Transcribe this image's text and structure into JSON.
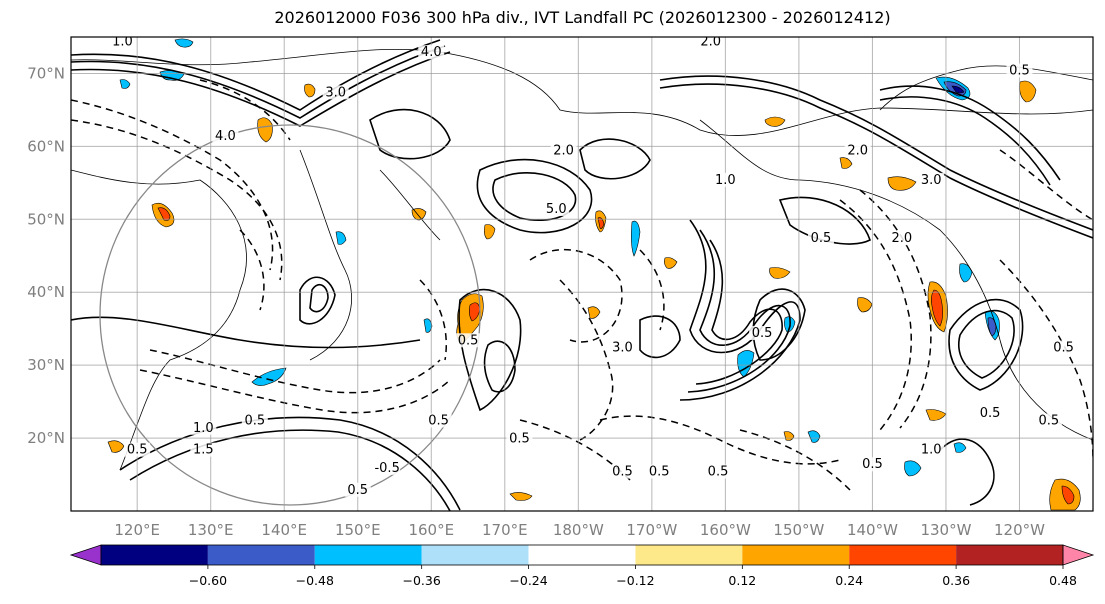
{
  "title": "2026012000 F036 300 hPa div., IVT Landfall PC (2026012300 - 2026012412)",
  "map": {
    "projection": "plate-carree",
    "lon_range": [
      111,
      250
    ],
    "lat_range": [
      10,
      75
    ],
    "lat_ticks": [
      {
        "value": 20,
        "label": "20°N"
      },
      {
        "value": 30,
        "label": "30°N"
      },
      {
        "value": 40,
        "label": "40°N"
      },
      {
        "value": 50,
        "label": "50°N"
      },
      {
        "value": 60,
        "label": "60°N"
      },
      {
        "value": 70,
        "label": "70°N"
      }
    ],
    "lon_ticks": [
      {
        "value": 120,
        "label": "120°E"
      },
      {
        "value": 130,
        "label": "130°E"
      },
      {
        "value": 140,
        "label": "140°E"
      },
      {
        "value": 150,
        "label": "150°E"
      },
      {
        "value": 160,
        "label": "160°E"
      },
      {
        "value": 170,
        "label": "170°E"
      },
      {
        "value": 180,
        "label": "180°W"
      },
      {
        "value": 190,
        "label": "170°W"
      },
      {
        "value": 200,
        "label": "160°W"
      },
      {
        "value": 210,
        "label": "150°W"
      },
      {
        "value": 220,
        "label": "140°W"
      },
      {
        "value": 230,
        "label": "130°W"
      },
      {
        "value": 240,
        "label": "120°W"
      }
    ],
    "grid": true,
    "contour_labels": [
      {
        "text": "1.0",
        "lon": 118,
        "lat": 74
      },
      {
        "text": "4.0",
        "lon": 160,
        "lat": 72.5
      },
      {
        "text": "2.0",
        "lon": 198,
        "lat": 74
      },
      {
        "text": "3.0",
        "lon": 147,
        "lat": 67
      },
      {
        "text": "4.0",
        "lon": 132,
        "lat": 61
      },
      {
        "text": "2.0",
        "lon": 178,
        "lat": 59
      },
      {
        "text": "5.0",
        "lon": 177,
        "lat": 51
      },
      {
        "text": "0.5",
        "lon": 165,
        "lat": 33
      },
      {
        "text": "0.5",
        "lon": 161,
        "lat": 22
      },
      {
        "text": "0.5",
        "lon": 136,
        "lat": 22
      },
      {
        "text": "1.0",
        "lon": 129,
        "lat": 21
      },
      {
        "text": "1.5",
        "lon": 129,
        "lat": 18
      },
      {
        "text": "0.5",
        "lon": 120,
        "lat": 18
      },
      {
        "text": "-0.5",
        "lon": 154,
        "lat": 15.5
      },
      {
        "text": "0.5",
        "lon": 150,
        "lat": 12.5
      },
      {
        "text": "0.5",
        "lon": 186,
        "lat": 15
      },
      {
        "text": "0.5",
        "lon": 191,
        "lat": 15
      },
      {
        "text": "0.5",
        "lon": 199,
        "lat": 15
      },
      {
        "text": "0.5",
        "lon": 172,
        "lat": 19.5
      },
      {
        "text": "0.5",
        "lon": 220,
        "lat": 16
      },
      {
        "text": "0.5",
        "lon": 236,
        "lat": 23
      },
      {
        "text": "0.5",
        "lon": 244,
        "lat": 22
      },
      {
        "text": "1.0",
        "lon": 228,
        "lat": 18
      },
      {
        "text": "0.5",
        "lon": 205,
        "lat": 34
      },
      {
        "text": "1.0",
        "lon": 200,
        "lat": 55
      },
      {
        "text": "2.0",
        "lon": 218,
        "lat": 59
      },
      {
        "text": "0.5",
        "lon": 240,
        "lat": 70
      },
      {
        "text": "3.0",
        "lon": 228,
        "lat": 55
      },
      {
        "text": "2.0",
        "lon": 224,
        "lat": 47
      },
      {
        "text": "0.5",
        "lon": 213,
        "lat": 47
      },
      {
        "text": "0.5",
        "lon": 246,
        "lat": 32
      },
      {
        "text": "3.0",
        "lon": 186,
        "lat": 32
      }
    ]
  },
  "colorbar": {
    "colors": [
      "#9932cc",
      "#000080",
      "#3a5bc8",
      "#00bfff",
      "#aee0fa",
      "#ffffff",
      "#fde98a",
      "#ffa500",
      "#ff4500",
      "#b22222",
      "#ff85a8"
    ],
    "bounds": [
      -0.6,
      -0.48,
      -0.36,
      -0.24,
      -0.12,
      0.12,
      0.24,
      0.36,
      0.48,
      0.6
    ],
    "tick_labels": [
      "−0.60",
      "−0.48",
      "−0.36",
      "−0.24",
      "−0.12",
      "0.12",
      "0.24",
      "0.36",
      "0.48",
      "0.60"
    ],
    "extend": "both"
  },
  "fill_colors": {
    "orange": "#ffa500",
    "red": "#ff4500",
    "lightblue": "#00bfff",
    "blue": "#3a5bc8",
    "darkblue": "#000080"
  }
}
